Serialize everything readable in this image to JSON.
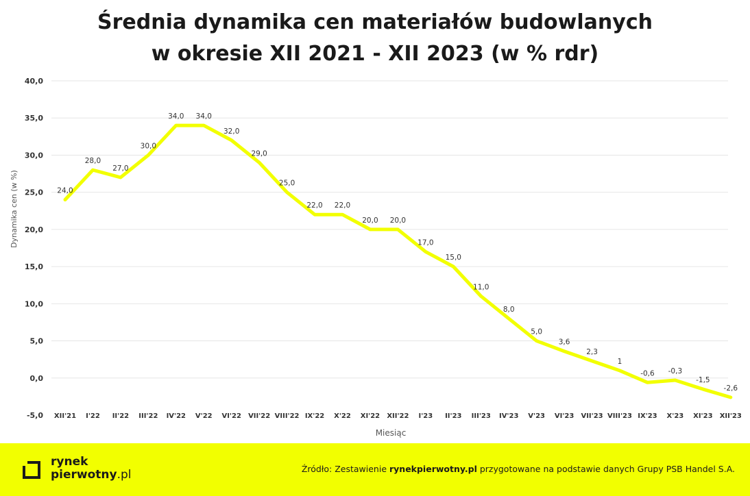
{
  "title": {
    "line1": "Średnia dynamika cen materiałów budowlanych",
    "line2": "w okresie XII 2021 - XII 2023 (w % rdr)"
  },
  "chart_data": {
    "type": "line",
    "categories": [
      "XII'21",
      "I'22",
      "II'22",
      "III'22",
      "IV'22",
      "V'22",
      "VI'22",
      "VII'22",
      "VIII'22",
      "IX'22",
      "X'22",
      "XI'22",
      "XII'22",
      "I'23",
      "II'23",
      "III'23",
      "IV'23",
      "V'23",
      "VI'23",
      "VII'23",
      "VIII'23",
      "IX'23",
      "X'23",
      "XI'23",
      "XII'23"
    ],
    "values": [
      24.0,
      28.0,
      27.0,
      30.0,
      34.0,
      34.0,
      32.0,
      29.0,
      25.0,
      22.0,
      22.0,
      20.0,
      20.0,
      17.0,
      15.0,
      11.0,
      8.0,
      5.0,
      3.6,
      2.3,
      1,
      -0.6,
      -0.3,
      -1.5,
      -2.6
    ],
    "data_labels": [
      "24,0",
      "28,0",
      "27,0",
      "30,0",
      "34,0",
      "34,0",
      "32,0",
      "29,0",
      "25,0",
      "22,0",
      "22,0",
      "20,0",
      "20,0",
      "17,0",
      "15,0",
      "11,0",
      "8,0",
      "5,0",
      "3,6",
      "2,3",
      "1",
      "-0,6",
      "-0,3",
      "-1,5",
      "-2,6"
    ],
    "yticks": [
      -5,
      0,
      5,
      10,
      15,
      20,
      25,
      30,
      35,
      40
    ],
    "ytick_labels": [
      "-5,0",
      "0,0",
      "5,0",
      "10,0",
      "15,0",
      "20,0",
      "25,0",
      "30,0",
      "35,0",
      "40,0"
    ],
    "ylim": [
      -5,
      40
    ],
    "xlabel": "Miesiąc",
    "ylabel": "Dynamika cen (w %)",
    "line_color": "#f2ff00",
    "grid": true,
    "legend": "none"
  },
  "footer": {
    "logo_line1": "rynek",
    "logo_line2_main": "pierwotny",
    "logo_line2_suffix": ".pl",
    "source_prefix": "Źródło: Zestawienie ",
    "source_bold": "rynekpierwotny.pl",
    "source_suffix": " przygotowane na podstawie danych Grupy PSB Handel S.A.",
    "background": "#f2ff00"
  }
}
